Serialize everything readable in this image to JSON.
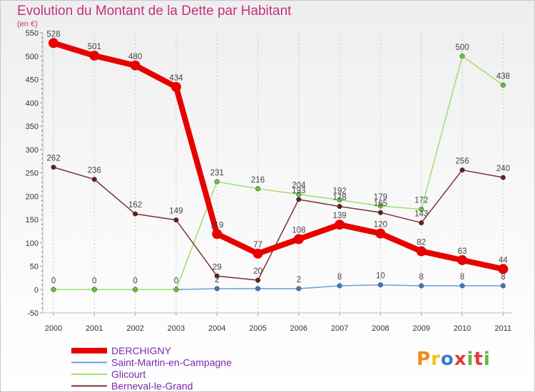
{
  "header": {
    "title": "Evolution du Montant de la Dette par Habitant",
    "unit": "(en €)"
  },
  "logo": {
    "text": "Proxiti",
    "letters": [
      "P",
      "r",
      "o",
      "x",
      "i",
      "t",
      "i"
    ],
    "letter_colors": [
      "#f08a1c",
      "#f2c21a",
      "#2f7fd0",
      "#e03c3c",
      "#62b53e",
      "#e03c3c",
      "#62b53e"
    ]
  },
  "chart_data": {
    "type": "line",
    "title": "Evolution du Montant de la Dette par Habitant",
    "ylabel": "(en €)",
    "xlabel": "",
    "x": [
      "2000",
      "2001",
      "2002",
      "2003",
      "2004",
      "2005",
      "2006",
      "2007",
      "2008",
      "2009",
      "2010",
      "2011"
    ],
    "ylim": [
      -50,
      550
    ],
    "yticks": [
      -50,
      0,
      50,
      100,
      150,
      200,
      250,
      300,
      350,
      400,
      450,
      500,
      550
    ],
    "grid": "vertical dashed lines at each year",
    "legend_position": "bottom-left",
    "series": [
      {
        "name": "DERCHIGNY",
        "color": "#e80000",
        "marker_color": "#e80000",
        "weight": "heavy",
        "values": [
          528,
          501,
          480,
          434,
          119,
          77,
          108,
          139,
          120,
          82,
          63,
          44
        ],
        "labels": [
          "528",
          "501",
          "480",
          "434",
          "119",
          "77",
          "108",
          "139",
          "120",
          "82",
          "63",
          "44"
        ]
      },
      {
        "name": "Saint-Martin-en-Campagne",
        "color": "#6a9fd4",
        "marker_color": "#3a7cc0",
        "weight": "thin",
        "values": [
          0,
          0,
          0,
          0,
          2,
          2,
          2,
          8,
          10,
          8,
          8,
          8
        ],
        "labels": [
          "0",
          "0",
          "0",
          "0",
          "2",
          "",
          "2",
          "8",
          "10",
          "8",
          "8",
          "8"
        ]
      },
      {
        "name": "Glicourt",
        "color": "#9ee06a",
        "marker_color": "#66c23a",
        "weight": "thin",
        "values": [
          0,
          0,
          0,
          0,
          231,
          216,
          204,
          192,
          179,
          172,
          500,
          438
        ],
        "labels": [
          "",
          "",
          "",
          "",
          "231",
          "216",
          "204",
          "192",
          "179",
          "172",
          "500",
          "438"
        ]
      },
      {
        "name": "Berneval-le-Grand",
        "color": "#7a3030",
        "marker_color": "#6a1a1a",
        "weight": "thin",
        "values": [
          262,
          236,
          162,
          149,
          29,
          20,
          193,
          178,
          165,
          143,
          256,
          240
        ],
        "labels": [
          "262",
          "236",
          "162",
          "149",
          "29",
          "20",
          "193",
          "178",
          "165",
          "143",
          "256",
          "240"
        ]
      }
    ]
  }
}
